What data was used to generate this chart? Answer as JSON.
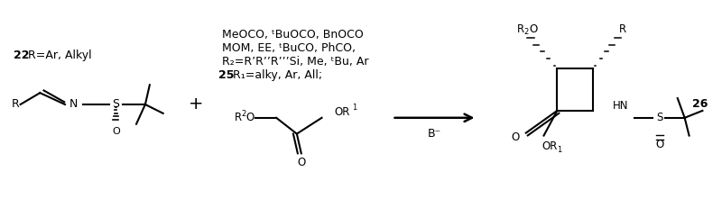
{
  "background_color": "#ffffff",
  "figsize": [
    8.0,
    2.31
  ],
  "dpi": 100,
  "compound22_label_bold": "22",
  "compound22_label_normal": " R=Ar, Alkyl",
  "compound25_label_bold": "25",
  "compound25_line1": " R₁=alky, Ar, All;",
  "compound25_line2": "R₂=R’R’’R’’’Si, Me, ᵗBu, Ar",
  "compound25_line3": "MOM, EE, ᵗBuCO, PhCO,",
  "compound25_line4": "MeOCO, ᵗBuOCO, BnOCO",
  "compound26_label": "26",
  "reagent_label": "B⁻",
  "lw": 1.5
}
